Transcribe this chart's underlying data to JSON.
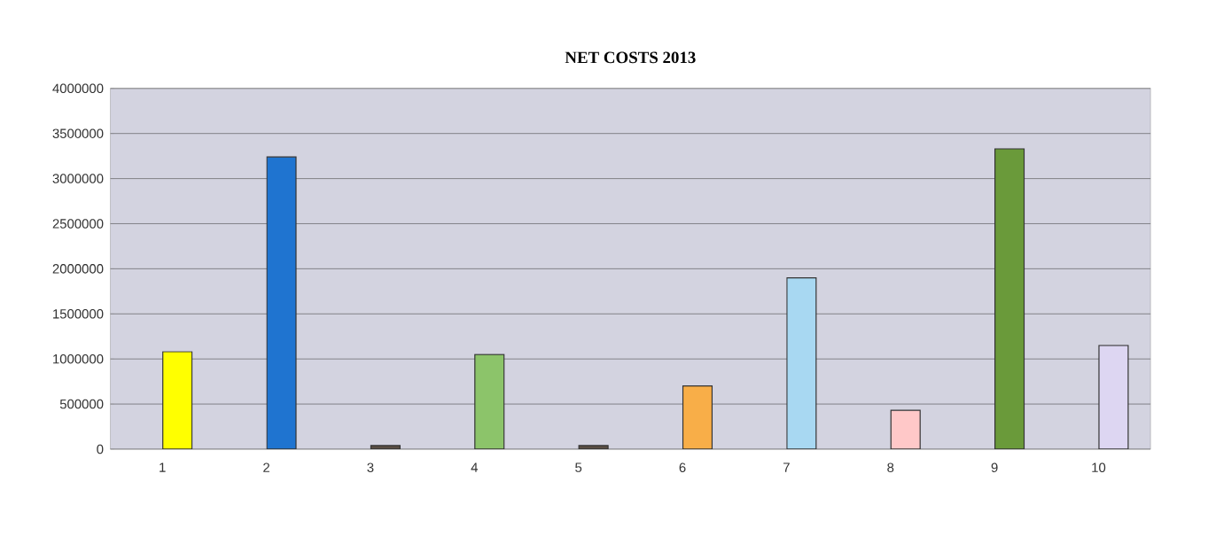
{
  "chart_data": {
    "type": "bar",
    "title": "NET COSTS 2013",
    "categories": [
      "1",
      "2",
      "3",
      "4",
      "5",
      "6",
      "7",
      "8",
      "9",
      "10"
    ],
    "values": [
      1080000,
      3240000,
      40000,
      1050000,
      40000,
      700000,
      1900000,
      430000,
      3330000,
      1150000
    ],
    "colors": [
      "#ffff00",
      "#1f74d0",
      "#5a4e44",
      "#8cc46a",
      "#5a4e44",
      "#f8ae48",
      "#a8d8f2",
      "#ffc8c8",
      "#6a9a3a",
      "#ddd6f2"
    ],
    "ylim": [
      0,
      4000000
    ],
    "yticks": [
      0,
      500000,
      1000000,
      1500000,
      2000000,
      2500000,
      3000000,
      3500000,
      4000000
    ],
    "grid": "y"
  }
}
